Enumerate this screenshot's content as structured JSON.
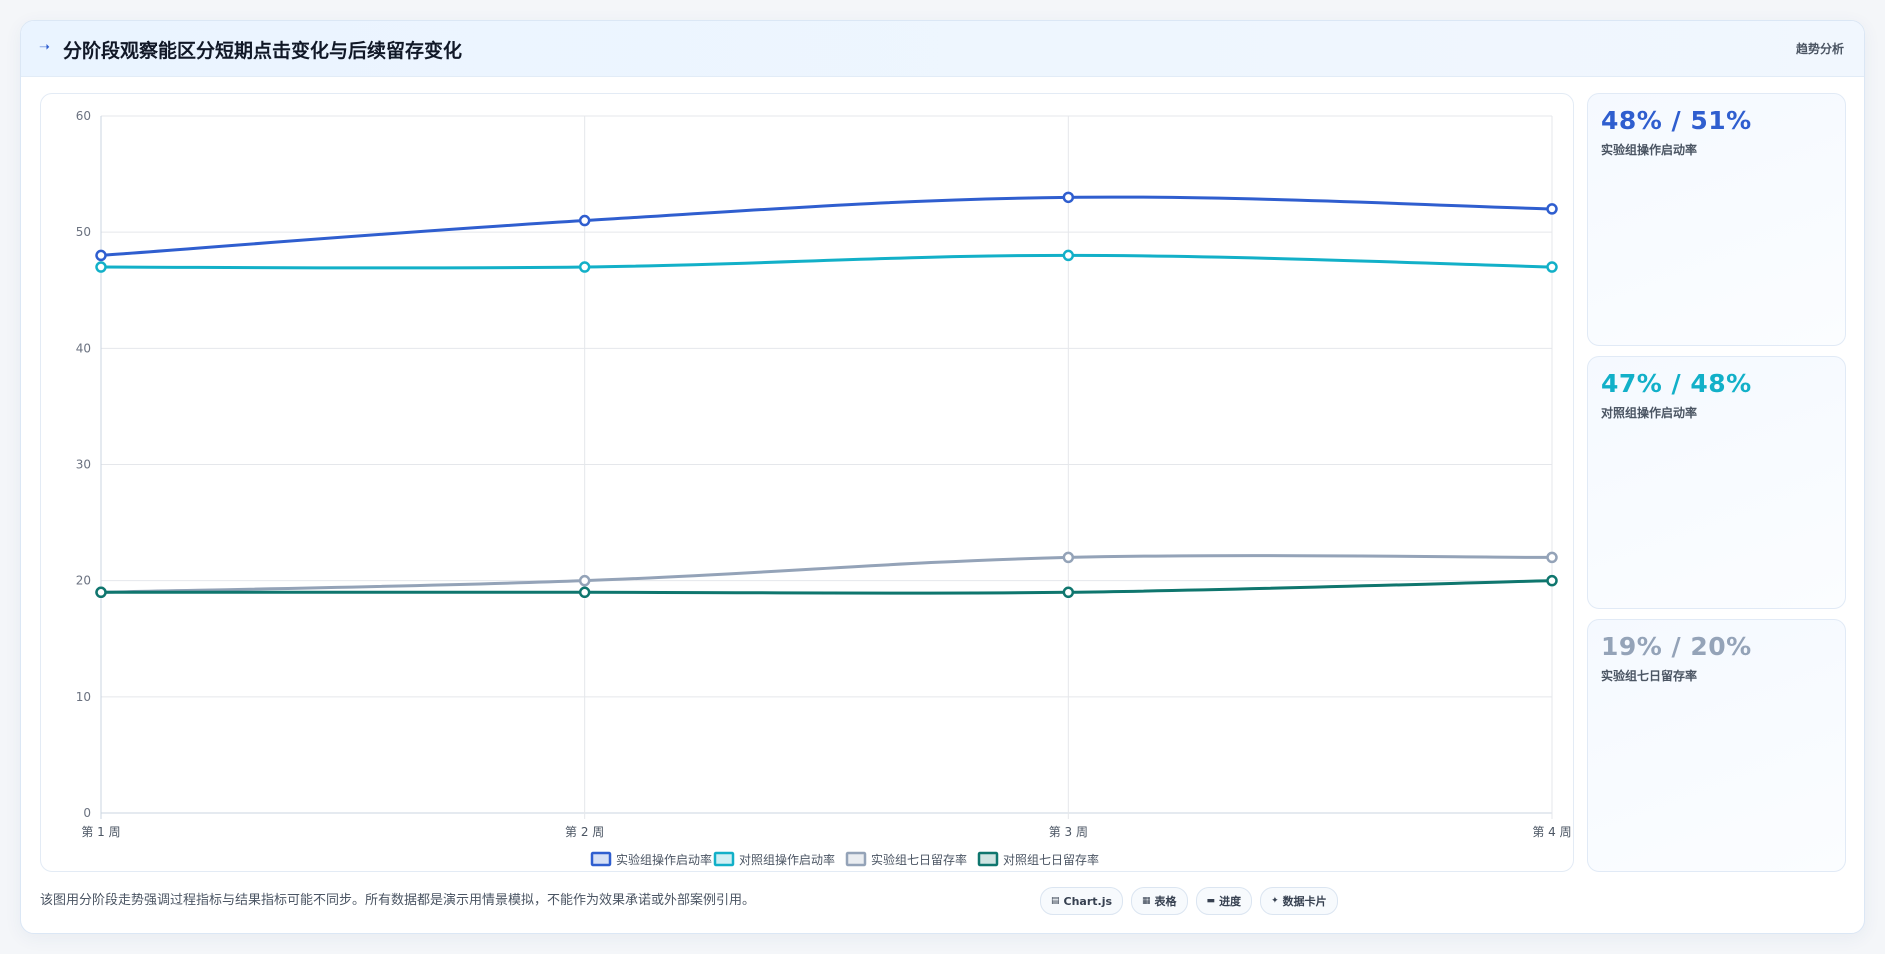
{
  "header": {
    "title": "分阶段观察能区分短期点击变化与后续留存变化",
    "tag": "趋势分析"
  },
  "kpis": [
    {
      "value": "48% / 51%",
      "label": "实验组操作启动率",
      "color": "#2f5ecf"
    },
    {
      "value": "47% / 48%",
      "label": "对照组操作启动率",
      "color": "#12b0c8"
    },
    {
      "value": "19% / 20%",
      "label": "实验组七日留存率",
      "color": "#94a3b8"
    }
  ],
  "footnote": "该图用分阶段走势强调过程指标与结果指标可能不同步。所有数据都是演示用情景模拟，不能作为效果承诺或外部案例引用。",
  "chips": [
    {
      "icon": "▤",
      "icon_name": "chart-icon",
      "label": "Chart.js"
    },
    {
      "icon": "▦",
      "icon_name": "table-icon",
      "label": "表格"
    },
    {
      "icon": "▬",
      "icon_name": "progress-icon",
      "label": "进度"
    },
    {
      "icon": "✦",
      "icon_name": "card-icon",
      "label": "数据卡片"
    }
  ],
  "chart_data": {
    "type": "line",
    "categories": [
      "第 1 周",
      "第 2 周",
      "第 3 周",
      "第 4 周"
    ],
    "ylim": [
      0,
      60
    ],
    "yticks": [
      0,
      10,
      20,
      30,
      40,
      50,
      60
    ],
    "grid": true,
    "legend_position": "bottom",
    "series": [
      {
        "name": "实验组操作启动率",
        "values": [
          48,
          51,
          53,
          52
        ],
        "color": "#2f5ecf"
      },
      {
        "name": "对照组操作启动率",
        "values": [
          47,
          47,
          48,
          47
        ],
        "color": "#12b0c8"
      },
      {
        "name": "实验组七日留存率",
        "values": [
          19,
          20,
          22,
          22
        ],
        "color": "#94a3b8"
      },
      {
        "name": "对照组七日留存率",
        "values": [
          19,
          19,
          19,
          20
        ],
        "color": "#0f766e"
      }
    ]
  }
}
